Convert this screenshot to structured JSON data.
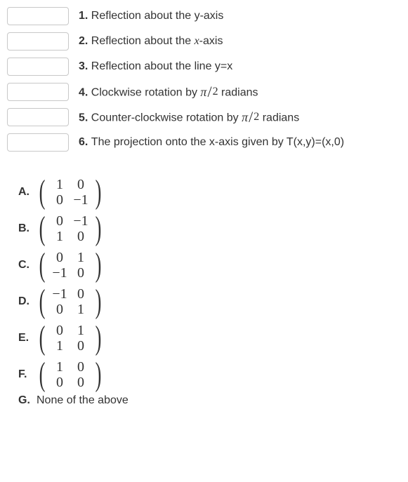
{
  "questions": {
    "rows": [
      {
        "num": "1.",
        "text_before": "Reflection about the y-axis",
        "has_var": false,
        "text_after": ""
      },
      {
        "num": "2.",
        "text_before": "Reflection about the ",
        "has_var": true,
        "var": "x",
        "text_after": "-axis"
      },
      {
        "num": "3.",
        "text_before": "Reflection about the line y=x",
        "has_var": false,
        "text_after": ""
      },
      {
        "num": "4.",
        "text_before": "Clockwise rotation by ",
        "has_frac": true,
        "text_after": " radians"
      },
      {
        "num": "5.",
        "text_before": "Counter-clockwise rotation by ",
        "has_frac": true,
        "text_after": " radians"
      },
      {
        "num": "6.",
        "text_before": "The projection onto the x-axis given by T(x,y)=(x,0)",
        "has_var": false,
        "text_after": ""
      }
    ],
    "pi_symbol": "π",
    "slash": "/",
    "two": "2"
  },
  "choices": {
    "items": [
      {
        "label": "A.",
        "matrix": [
          [
            "1",
            "0"
          ],
          [
            "0",
            "−1"
          ]
        ]
      },
      {
        "label": "B.",
        "matrix": [
          [
            "0",
            "−1"
          ],
          [
            "1",
            "0"
          ]
        ]
      },
      {
        "label": "C.",
        "matrix": [
          [
            "0",
            "1"
          ],
          [
            "−1",
            "0"
          ]
        ]
      },
      {
        "label": "D.",
        "matrix": [
          [
            "−1",
            "0"
          ],
          [
            "0",
            "1"
          ]
        ]
      },
      {
        "label": "E.",
        "matrix": [
          [
            "0",
            "1"
          ],
          [
            "1",
            "0"
          ]
        ]
      },
      {
        "label": "F.",
        "matrix": [
          [
            "1",
            "0"
          ],
          [
            "0",
            "0"
          ]
        ]
      }
    ],
    "none_label": "G.",
    "none_text": "None of the above"
  }
}
